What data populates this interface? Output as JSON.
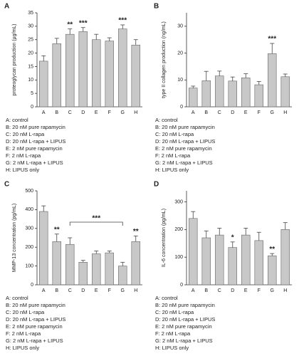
{
  "chart_data": [
    {
      "panel": "A",
      "type": "bar",
      "y_label": "proteoglycan production (μg/mL)",
      "categories": [
        "A",
        "B",
        "C",
        "D",
        "E",
        "F",
        "G",
        "H"
      ],
      "values": [
        17,
        23.5,
        27,
        28,
        25,
        24.5,
        29,
        23
      ],
      "errors": [
        2,
        2,
        2,
        1.5,
        2,
        1.2,
        1.5,
        2
      ],
      "color": "#c8c8c8",
      "ylim": [
        0,
        35
      ],
      "yticks": [
        0,
        5,
        10,
        15,
        20,
        25,
        30,
        35
      ],
      "annotations": [
        {
          "text": "**",
          "category": "C"
        },
        {
          "text": "***",
          "category": "D"
        },
        {
          "text": "***",
          "category": "G"
        }
      ],
      "legend": [
        "A: control",
        "B: 20 nM pure rapamycin",
        "C: 20 nM L-rapa",
        "D: 20 nM L-rapa + LIPUS",
        "E: 2 nM pure rapamycin",
        "F: 2 nM L-rapa",
        "G: 2 nM L-rapa + LIPUS",
        "H: LIPUS only"
      ]
    },
    {
      "panel": "B",
      "type": "bar",
      "y_label": "type II collagen production (ng/mL)",
      "categories": [
        "A",
        "B",
        "C",
        "D",
        "E",
        "F",
        "G",
        "H"
      ],
      "values": [
        7,
        9.7,
        11.5,
        9.6,
        10.8,
        8.2,
        19.8,
        11.2
      ],
      "errors": [
        0.7,
        3.5,
        1.8,
        1.5,
        1.5,
        1.2,
        3.8,
        1
      ],
      "color": "#c8c8c8",
      "ylim": [
        0,
        35
      ],
      "yticks": [
        0,
        10,
        20,
        30
      ],
      "annotations": [
        {
          "text": "***",
          "category": "G"
        }
      ],
      "legend": [
        "A: control",
        "B: 20 nM pure rapamycin",
        "C: 20 nM L-rapa",
        "D: 20 nM L-rapa + LIPUS",
        "E: 2 nM pure rapamycin",
        "F: 2 nM L-rapa",
        "G: 2 nM L-rapa + LIPUS",
        "H: LIPUS only"
      ]
    },
    {
      "panel": "C",
      "type": "bar",
      "y_label": "MMP-13 concentration (pg/mL)",
      "categories": [
        "A",
        "B",
        "C",
        "D",
        "E",
        "F",
        "G",
        "H"
      ],
      "values": [
        390,
        230,
        215,
        120,
        165,
        170,
        100,
        230
      ],
      "errors": [
        30,
        40,
        35,
        10,
        15,
        10,
        20,
        30
      ],
      "color": "#c8c8c8",
      "ylim": [
        0,
        500
      ],
      "yticks": [
        0,
        100,
        200,
        300,
        400,
        500
      ],
      "annotations": [
        {
          "text": "**",
          "category": "B"
        },
        {
          "text": "**",
          "category": "H"
        },
        {
          "text": "***",
          "from": "C",
          "to": "G"
        }
      ],
      "legend": [
        "A: control",
        "B: 20 nM pure rapamycin",
        "C: 20 nM L-rapa",
        "D: 20 nM L-rapa + LIPUS",
        "E: 2 nM pure rapamycin",
        "F: 2 nM L-rapa",
        "G: 2 nM L-rapa + LIPUS",
        "H: LIPUS only"
      ]
    },
    {
      "panel": "D",
      "type": "bar",
      "y_label": "IL-6 concentration (pg/mL)",
      "categories": [
        "A",
        "B",
        "C",
        "D",
        "E",
        "F",
        "G",
        "H"
      ],
      "values": [
        240,
        170,
        180,
        135,
        180,
        160,
        105,
        200
      ],
      "errors": [
        25,
        25,
        25,
        20,
        25,
        30,
        8,
        25
      ],
      "color": "#c8c8c8",
      "ylim": [
        0,
        340
      ],
      "yticks": [
        0,
        100,
        200,
        300
      ],
      "annotations": [
        {
          "text": "*",
          "category": "D"
        },
        {
          "text": "**",
          "category": "G"
        }
      ],
      "legend": [
        "A: control",
        "B: 20 nM pure rapamycin",
        "C: 20 nM L-rapa",
        "D: 20 nM L-rapa + LIPUS",
        "E: 2 nM pure rapamycin",
        "F: 2 nM L-rapa",
        "G: 2 nM L-rapa + LIPUS",
        "H: LIPUS only"
      ]
    }
  ]
}
